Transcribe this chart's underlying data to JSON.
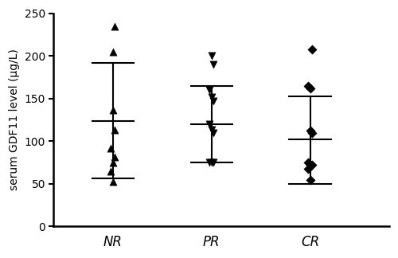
{
  "groups": [
    "NR",
    "PR",
    "CR"
  ],
  "NR_values": [
    235,
    205,
    137,
    113,
    92,
    82,
    75,
    65,
    53
  ],
  "PR_values": [
    200,
    190,
    160,
    152,
    147,
    120,
    113,
    110,
    75,
    75,
    75
  ],
  "CR_values": [
    208,
    165,
    162,
    112,
    110,
    75,
    72,
    72,
    68,
    55
  ],
  "NR_mean": 124,
  "NR_sd_upper": 192,
  "NR_sd_lower": 56,
  "PR_mean": 120,
  "PR_sd_upper": 165,
  "PR_sd_lower": 75,
  "CR_mean": 102,
  "CR_sd_upper": 153,
  "CR_sd_lower": 50,
  "ylabel": "serum GDF11 level (μg/L)",
  "ylim": [
    0,
    250
  ],
  "yticks": [
    0,
    50,
    100,
    150,
    200,
    250
  ],
  "marker_color": "black",
  "marker_size": 5,
  "errorbar_color": "black",
  "errorbar_linewidth": 1.5,
  "background_color": "#ffffff",
  "x_positions": [
    1,
    2,
    3
  ],
  "xlim": [
    0.4,
    3.8
  ],
  "bar_halfwidth": 0.22
}
